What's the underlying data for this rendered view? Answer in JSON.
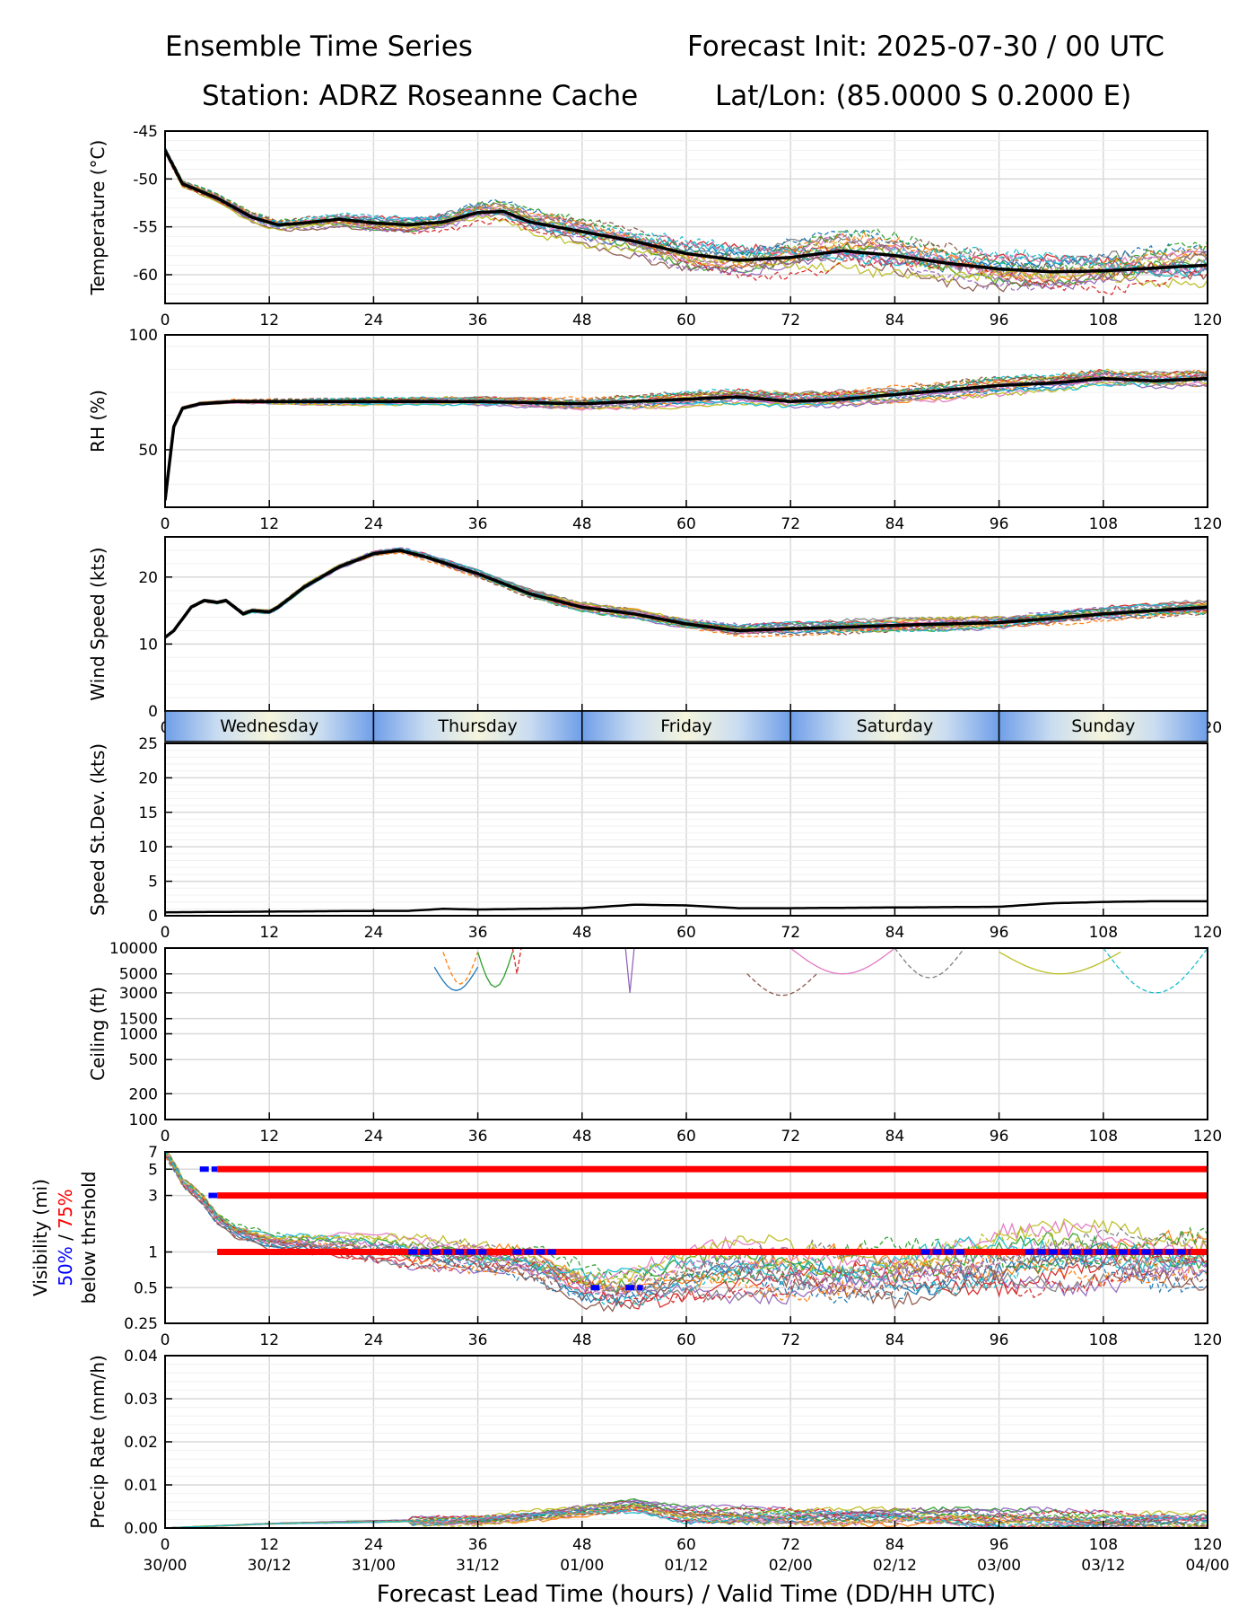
{
  "header": {
    "title_left": "Ensemble Time Series",
    "title_right": "Forecast Init: 2025-07-30 / 00 UTC",
    "station": "Station: ADRZ Roseanne Cache",
    "latlon": "Lat/Lon: (85.0000 S 0.2000 E)"
  },
  "chart_data": {
    "type": "line",
    "x_ticks": [
      0,
      12,
      24,
      36,
      48,
      60,
      72,
      84,
      96,
      108,
      120
    ],
    "x_time_labels": [
      "30/00",
      "30/12",
      "31/00",
      "31/12",
      "01/00",
      "01/12",
      "02/00",
      "02/12",
      "03/00",
      "03/12",
      "04/00"
    ],
    "xlabel": "Forecast Lead Time (hours) / Valid Time (DD/HH UTC)",
    "xlim": [
      0,
      120
    ],
    "grid": true,
    "member_colors": [
      "#1f77b4",
      "#ff7f0e",
      "#2ca02c",
      "#d62728",
      "#9467bd",
      "#8c564b",
      "#e377c2",
      "#7f7f7f",
      "#bcbd22",
      "#17becf"
    ],
    "days": [
      "Wednesday",
      "Thursday",
      "Friday",
      "Saturday",
      "Sunday"
    ],
    "panels": [
      {
        "id": "temperature",
        "ylabel": "Temperature (°C)",
        "ylim": [
          -63,
          -45
        ],
        "y_ticks": [
          -45,
          -50,
          -55,
          -60
        ],
        "series": [
          {
            "x": [
              0,
              2,
              6,
              10,
              13,
              16,
              20,
              24,
              28,
              32,
              36,
              39,
              42,
              48,
              54,
              60,
              66,
              72,
              78,
              84,
              90,
              96,
              102,
              108,
              114,
              120
            ],
            "values": [
              -47,
              -50.5,
              -52,
              -54,
              -54.8,
              -54.6,
              -54.2,
              -54.6,
              -54.8,
              -54.5,
              -53.5,
              -53.4,
              -54.5,
              -55.5,
              -56.5,
              -57.8,
              -58.5,
              -58.2,
              -57.5,
              -58,
              -58.8,
              -59.4,
              -59.7,
              -59.6,
              -59.3,
              -59
            ]
          }
        ]
      },
      {
        "id": "rh",
        "ylabel": "RH (%)",
        "ylim": [
          25,
          100
        ],
        "y_ticks": [
          100,
          50
        ],
        "series": [
          {
            "x": [
              0,
              1,
              2,
              4,
              8,
              12,
              24,
              36,
              48,
              54,
              60,
              66,
              72,
              78,
              84,
              90,
              96,
              102,
              108,
              114,
              120
            ],
            "values": [
              28,
              60,
              68,
              70,
              71,
              71,
              71,
              71,
              70,
              71,
              72,
              73,
              71,
              72,
              74,
              76,
              78,
              79,
              81,
              80,
              81
            ]
          }
        ]
      },
      {
        "id": "wind",
        "ylabel": "Wind Speed (kts)",
        "ylim": [
          0,
          26
        ],
        "y_ticks": [
          0,
          10,
          20
        ],
        "series": [
          {
            "x": [
              0,
              1,
              3,
              4.5,
              6,
              7,
              8,
              9,
              10,
              12,
              13,
              16,
              20,
              24,
              27,
              30,
              36,
              42,
              48,
              54,
              60,
              66,
              72,
              78,
              84,
              90,
              96,
              102,
              108,
              114,
              120
            ],
            "values": [
              11,
              12,
              15.5,
              16.5,
              16.2,
              16.5,
              15.5,
              14.5,
              15,
              14.8,
              15.5,
              18.5,
              21.5,
              23.5,
              24,
              23,
              20.5,
              17.5,
              15.5,
              14.5,
              13,
              12,
              12.3,
              12.5,
              12.8,
              13,
              13.2,
              13.8,
              14.5,
              15,
              15.5
            ]
          }
        ]
      },
      {
        "id": "speed_stdev",
        "ylabel": "Speed St.Dev. (kts)",
        "ylim": [
          0,
          25
        ],
        "y_ticks": [
          0,
          5,
          10,
          15,
          20,
          25
        ],
        "series": [
          {
            "x": [
              0,
              12,
              24,
              28,
              32,
              36,
              42,
              48,
              54,
              60,
              66,
              72,
              84,
              96,
              102,
              108,
              114,
              120
            ],
            "values": [
              0.5,
              0.6,
              0.7,
              0.7,
              1,
              0.9,
              1,
              1.1,
              1.6,
              1.5,
              1.1,
              1.1,
              1.2,
              1.3,
              1.8,
              2,
              2.1,
              2.1
            ]
          }
        ]
      },
      {
        "id": "ceiling",
        "ylabel": "Ceiling (ft)",
        "scale": "log",
        "ylim": [
          100,
          10000
        ],
        "y_ticks": [
          10000,
          5000,
          3000,
          1500,
          1000,
          500,
          200,
          100
        ]
      },
      {
        "id": "visibility",
        "ylabel": [
          "Visibility (mi)",
          "50% / 75%",
          "below thrshold"
        ],
        "ylabel_colors": [
          "#000000",
          "#0000ff",
          "#ff0000"
        ],
        "scale": "log",
        "ylim": [
          0.25,
          7
        ],
        "y_ticks": [
          7,
          5,
          3,
          1,
          0.5,
          0.25
        ],
        "thresholds": [
          5,
          3,
          1
        ],
        "series": [
          {
            "x": [
              0,
              2,
              4,
              6,
              8,
              12,
              18,
              24,
              30,
              36,
              42,
              48,
              52,
              56,
              60,
              66,
              72,
              78,
              84,
              90,
              96,
              102,
              108,
              114,
              120
            ],
            "values": [
              7,
              4,
              3,
              2,
              1.6,
              1.3,
              1.2,
              1.1,
              1,
              0.95,
              0.9,
              0.6,
              0.55,
              0.6,
              0.7,
              0.75,
              0.75,
              0.8,
              0.8,
              0.85,
              0.9,
              0.95,
              1,
              1,
              1.05
            ]
          }
        ]
      },
      {
        "id": "precip",
        "ylabel": "Precip Rate (mm/h)",
        "ylim": [
          0,
          0.04
        ],
        "y_ticks": [
          0.04,
          0.03,
          0.02,
          0.01,
          0.0
        ],
        "series": [
          {
            "x": [
              0,
              12,
              24,
              36,
              48,
              54,
              60,
              72,
              84,
              96,
              108,
              120
            ],
            "values": [
              0,
              0.001,
              0.0015,
              0.002,
              0.004,
              0.005,
              0.003,
              0.003,
              0.003,
              0.002,
              0.002,
              0.002
            ]
          }
        ]
      }
    ]
  }
}
